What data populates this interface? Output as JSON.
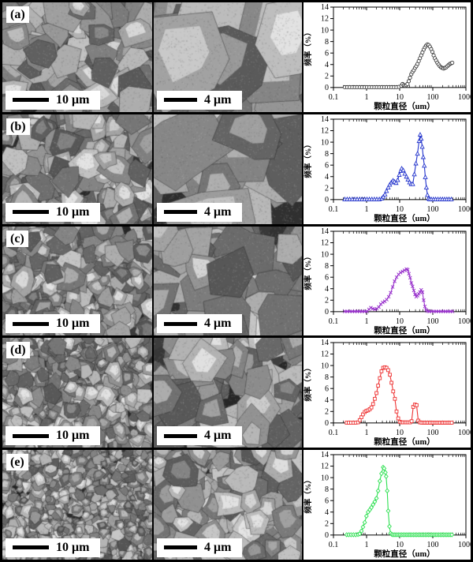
{
  "figure": {
    "rows": [
      {
        "label": "(a)",
        "left_scalebar": "10 μm",
        "mid_scalebar": "4 μm"
      },
      {
        "label": "(b)",
        "left_scalebar": "10 μm",
        "mid_scalebar": "4 μm"
      },
      {
        "label": "(c)",
        "left_scalebar": "10 μm",
        "mid_scalebar": "4 μm"
      },
      {
        "label": "(d)",
        "left_scalebar": "10 μm",
        "mid_scalebar": "4 μm"
      },
      {
        "label": "(e)",
        "left_scalebar": "10 μm",
        "mid_scalebar": "4 μm"
      }
    ]
  },
  "chart_common": {
    "xlabel": "颗粒直径（um）",
    "ylabel": "频率（%）",
    "xscale": "log",
    "xlim": [
      0.1,
      1000
    ],
    "ylim": [
      0,
      14
    ],
    "xticks": [
      "0.1",
      "1",
      "10",
      "100",
      "1000"
    ],
    "yticks": [
      0,
      2,
      4,
      6,
      8,
      10,
      12,
      14
    ],
    "grid": false,
    "legend": "none"
  },
  "chart_data": [
    {
      "type": "line",
      "panel": "a",
      "color": "#3a3a3a",
      "marker": "circle",
      "title": "",
      "xlabel": "颗粒直径（um）",
      "ylabel": "频率（%）",
      "xscale": "log",
      "xlim": [
        0.1,
        1000
      ],
      "ylim": [
        0,
        14
      ],
      "points": [
        [
          0.22,
          0.05
        ],
        [
          0.26,
          0.05
        ],
        [
          0.31,
          0.05
        ],
        [
          0.37,
          0.05
        ],
        [
          0.44,
          0.05
        ],
        [
          0.52,
          0.05
        ],
        [
          0.62,
          0.05
        ],
        [
          0.73,
          0.05
        ],
        [
          0.87,
          0.05
        ],
        [
          1.03,
          0.05
        ],
        [
          1.22,
          0.05
        ],
        [
          1.45,
          0.05
        ],
        [
          1.72,
          0.05
        ],
        [
          2.04,
          0.05
        ],
        [
          2.42,
          0.05
        ],
        [
          2.87,
          0.05
        ],
        [
          3.4,
          0.05
        ],
        [
          4.03,
          0.05
        ],
        [
          4.78,
          0.05
        ],
        [
          5.67,
          0.05
        ],
        [
          6.72,
          0.05
        ],
        [
          7.97,
          0.05
        ],
        [
          9.45,
          0.1
        ],
        [
          11.2,
          0.3
        ],
        [
          12.2,
          0.6
        ],
        [
          13.3,
          0.4
        ],
        [
          14.5,
          0.3
        ],
        [
          15.8,
          0.4
        ],
        [
          17.2,
          0.6
        ],
        [
          18.8,
          1.1
        ],
        [
          20.5,
          1.7
        ],
        [
          22.4,
          2.3
        ],
        [
          24.4,
          2.7
        ],
        [
          26.6,
          3.0
        ],
        [
          29,
          3.4
        ],
        [
          31.6,
          3.7
        ],
        [
          34.5,
          4.1
        ],
        [
          37.6,
          4.6
        ],
        [
          41,
          5.1
        ],
        [
          44.7,
          5.6
        ],
        [
          48.7,
          6.1
        ],
        [
          53.1,
          6.6
        ],
        [
          57.9,
          7.0
        ],
        [
          63.1,
          7.3
        ],
        [
          68.8,
          7.5
        ],
        [
          75,
          7.4
        ],
        [
          81.8,
          7.1
        ],
        [
          89.2,
          6.7
        ],
        [
          97.2,
          6.2
        ],
        [
          106,
          5.6
        ],
        [
          115.5,
          5.1
        ],
        [
          126,
          4.7
        ],
        [
          137.4,
          4.3
        ],
        [
          149.8,
          4.0
        ],
        [
          163.3,
          3.7
        ],
        [
          178,
          3.5
        ],
        [
          194,
          3.4
        ],
        [
          211.6,
          3.3
        ],
        [
          230.7,
          3.4
        ],
        [
          251.5,
          3.5
        ],
        [
          274.2,
          3.7
        ],
        [
          299,
          3.9
        ],
        [
          325.9,
          4.1
        ],
        [
          355.3,
          4.2
        ],
        [
          387.4,
          4.3
        ]
      ]
    },
    {
      "type": "line",
      "panel": "b",
      "color": "#2233cc",
      "marker": "triangle",
      "title": "",
      "xlabel": "颗粒直径（um）",
      "ylabel": "频率（%）",
      "xscale": "log",
      "xlim": [
        0.1,
        1000
      ],
      "ylim": [
        0,
        14
      ],
      "points": [
        [
          0.22,
          0.05
        ],
        [
          0.26,
          0.05
        ],
        [
          0.31,
          0.05
        ],
        [
          0.37,
          0.05
        ],
        [
          0.44,
          0.05
        ],
        [
          0.52,
          0.05
        ],
        [
          0.62,
          0.05
        ],
        [
          0.73,
          0.05
        ],
        [
          0.87,
          0.05
        ],
        [
          1.03,
          0.05
        ],
        [
          1.22,
          0.05
        ],
        [
          1.45,
          0.05
        ],
        [
          1.72,
          0.05
        ],
        [
          2.04,
          0.05
        ],
        [
          2.42,
          0.05
        ],
        [
          2.87,
          0.2
        ],
        [
          3.2,
          0.5
        ],
        [
          3.6,
          0.9
        ],
        [
          4.0,
          1.5
        ],
        [
          4.5,
          2.1
        ],
        [
          5.0,
          2.6
        ],
        [
          5.6,
          3.0
        ],
        [
          6.3,
          3.3
        ],
        [
          7.0,
          3.1
        ],
        [
          7.8,
          2.9
        ],
        [
          8.7,
          3.4
        ],
        [
          9.7,
          4.3
        ],
        [
          10.8,
          5.0
        ],
        [
          11.5,
          5.4
        ],
        [
          12.8,
          5.1
        ],
        [
          14.3,
          4.5
        ],
        [
          16.0,
          4.0
        ],
        [
          17.8,
          3.5
        ],
        [
          19.9,
          3.0
        ],
        [
          22.2,
          2.7
        ],
        [
          24.8,
          2.7
        ],
        [
          27.7,
          4.4
        ],
        [
          30.9,
          6.3
        ],
        [
          34.5,
          8.0
        ],
        [
          38.5,
          10.2
        ],
        [
          41.5,
          11.3
        ],
        [
          44.5,
          10.6
        ],
        [
          48,
          9.2
        ],
        [
          51.5,
          7.4
        ],
        [
          55.5,
          5.9
        ],
        [
          59.5,
          3.9
        ],
        [
          64,
          2.1
        ],
        [
          69,
          0.8
        ],
        [
          74,
          0.2
        ],
        [
          80,
          0.05
        ],
        [
          90,
          0.05
        ],
        [
          105,
          0.05
        ],
        [
          122,
          0.05
        ],
        [
          143,
          0.05
        ],
        [
          167,
          0.05
        ],
        [
          195,
          0.05
        ],
        [
          228,
          0.05
        ],
        [
          266,
          0.05
        ],
        [
          311,
          0.05
        ],
        [
          363,
          0.05
        ]
      ]
    },
    {
      "type": "line",
      "panel": "c",
      "color": "#9933cc",
      "marker": "x",
      "title": "",
      "xlabel": "颗粒直径（um）",
      "ylabel": "频率（%）",
      "xscale": "log",
      "xlim": [
        0.1,
        1000
      ],
      "ylim": [
        0,
        14
      ],
      "points": [
        [
          0.22,
          0.05
        ],
        [
          0.26,
          0.05
        ],
        [
          0.31,
          0.05
        ],
        [
          0.37,
          0.05
        ],
        [
          0.44,
          0.05
        ],
        [
          0.52,
          0.05
        ],
        [
          0.62,
          0.05
        ],
        [
          0.73,
          0.05
        ],
        [
          0.87,
          0.05
        ],
        [
          1.03,
          0.05
        ],
        [
          1.18,
          0.4
        ],
        [
          1.35,
          0.7
        ],
        [
          1.55,
          0.5
        ],
        [
          1.78,
          0.4
        ],
        [
          2.04,
          0.5
        ],
        [
          2.34,
          0.8
        ],
        [
          2.69,
          1.3
        ],
        [
          3.08,
          1.6
        ],
        [
          3.54,
          1.8
        ],
        [
          4.06,
          2.1
        ],
        [
          4.66,
          2.6
        ],
        [
          5.34,
          3.3
        ],
        [
          6.13,
          4.3
        ],
        [
          7.03,
          5.3
        ],
        [
          8.07,
          6.0
        ],
        [
          9.26,
          6.5
        ],
        [
          10.6,
          6.8
        ],
        [
          12.2,
          7.0
        ],
        [
          14.0,
          7.2
        ],
        [
          16.0,
          7.4
        ],
        [
          17.5,
          7.3
        ],
        [
          19,
          6.6
        ],
        [
          20.7,
          5.9
        ],
        [
          22.5,
          5.0
        ],
        [
          24.5,
          4.4
        ],
        [
          26.7,
          3.7
        ],
        [
          29.1,
          3.0
        ],
        [
          31.7,
          2.6
        ],
        [
          34.5,
          2.8
        ],
        [
          37.6,
          3.1
        ],
        [
          41,
          3.4
        ],
        [
          44.6,
          3.8
        ],
        [
          48.6,
          3.4
        ],
        [
          53,
          2.0
        ],
        [
          57.7,
          0.9
        ],
        [
          62.9,
          0.3
        ],
        [
          68.5,
          0.1
        ],
        [
          78,
          0.05
        ],
        [
          92,
          0.05
        ],
        [
          108,
          0.05
        ],
        [
          127,
          0.05
        ],
        [
          150,
          0.05
        ],
        [
          176,
          0.05
        ],
        [
          207,
          0.05
        ],
        [
          243,
          0.05
        ],
        [
          286,
          0.05
        ],
        [
          336,
          0.05
        ],
        [
          395,
          0.05
        ]
      ]
    },
    {
      "type": "line",
      "panel": "d",
      "color": "#ee3333",
      "marker": "square",
      "title": "",
      "xlabel": "颗粒直径（um）",
      "ylabel": "频率（%）",
      "xscale": "log",
      "xlim": [
        0.1,
        1000
      ],
      "ylim": [
        0,
        14
      ],
      "points": [
        [
          0.25,
          0.05
        ],
        [
          0.29,
          0.05
        ],
        [
          0.34,
          0.05
        ],
        [
          0.4,
          0.05
        ],
        [
          0.47,
          0.05
        ],
        [
          0.55,
          0.1
        ],
        [
          0.62,
          0.5
        ],
        [
          0.7,
          1.0
        ],
        [
          0.78,
          1.5
        ],
        [
          0.88,
          1.9
        ],
        [
          0.99,
          2.1
        ],
        [
          1.11,
          2.2
        ],
        [
          1.25,
          2.4
        ],
        [
          1.4,
          2.7
        ],
        [
          1.57,
          3.3
        ],
        [
          1.77,
          4.2
        ],
        [
          1.99,
          5.2
        ],
        [
          2.23,
          6.5
        ],
        [
          2.51,
          7.8
        ],
        [
          2.82,
          9.0
        ],
        [
          3.17,
          9.6
        ],
        [
          3.56,
          9.7
        ],
        [
          4.0,
          9.6
        ],
        [
          4.49,
          9.2
        ],
        [
          5.05,
          8.4
        ],
        [
          5.67,
          7.0
        ],
        [
          6.37,
          5.5
        ],
        [
          7.16,
          4.2
        ],
        [
          8.04,
          2.0
        ],
        [
          9.03,
          0.8
        ],
        [
          10.1,
          0.2
        ],
        [
          11.4,
          0.1
        ],
        [
          12.8,
          0.1
        ],
        [
          14.4,
          0.1
        ],
        [
          16.1,
          0.1
        ],
        [
          18.1,
          0.1
        ],
        [
          20.4,
          0.1
        ],
        [
          22.9,
          0.3
        ],
        [
          25.7,
          2.8
        ],
        [
          28.8,
          3.2
        ],
        [
          32.4,
          3.1
        ],
        [
          36.4,
          0.4
        ],
        [
          40.9,
          0.1
        ],
        [
          45.9,
          0.05
        ],
        [
          52,
          0.05
        ],
        [
          58,
          0.05
        ],
        [
          65,
          0.05
        ],
        [
          73,
          0.05
        ],
        [
          82,
          0.05
        ],
        [
          92,
          0.05
        ],
        [
          104,
          0.05
        ],
        [
          117,
          0.05
        ],
        [
          131,
          0.05
        ],
        [
          147,
          0.05
        ],
        [
          165,
          0.05
        ],
        [
          186,
          0.05
        ],
        [
          209,
          0.05
        ],
        [
          234,
          0.05
        ],
        [
          263,
          0.05
        ],
        [
          296,
          0.05
        ],
        [
          332,
          0.05
        ],
        [
          373,
          0.05
        ]
      ]
    },
    {
      "type": "line",
      "panel": "e",
      "color": "#2ee052",
      "marker": "diamond",
      "title": "",
      "xlabel": "颗粒直径（um）",
      "ylabel": "频率（%）",
      "xscale": "log",
      "xlim": [
        0.1,
        1000
      ],
      "ylim": [
        0,
        14
      ],
      "points": [
        [
          0.25,
          0.05
        ],
        [
          0.29,
          0.05
        ],
        [
          0.34,
          0.05
        ],
        [
          0.4,
          0.05
        ],
        [
          0.47,
          0.05
        ],
        [
          0.55,
          0.1
        ],
        [
          0.62,
          0.2
        ],
        [
          0.7,
          0.7
        ],
        [
          0.78,
          1.4
        ],
        [
          0.88,
          2.2
        ],
        [
          0.99,
          3.3
        ],
        [
          1.11,
          4.0
        ],
        [
          1.25,
          4.4
        ],
        [
          1.4,
          4.8
        ],
        [
          1.57,
          5.3
        ],
        [
          1.77,
          5.8
        ],
        [
          1.99,
          6.4
        ],
        [
          2.23,
          7.7
        ],
        [
          2.51,
          9.4
        ],
        [
          2.82,
          10.7
        ],
        [
          3.16,
          11.8
        ],
        [
          3.4,
          11.6
        ],
        [
          3.7,
          10.9
        ],
        [
          3.9,
          10.2
        ],
        [
          4.2,
          7.7
        ],
        [
          4.5,
          4.2
        ],
        [
          4.9,
          1.5
        ],
        [
          5.3,
          0.3
        ],
        [
          5.8,
          0.1
        ],
        [
          6.4,
          0.05
        ],
        [
          7.2,
          0.05
        ],
        [
          8.1,
          0.05
        ],
        [
          9.1,
          0.05
        ],
        [
          10.2,
          0.05
        ],
        [
          11.5,
          0.05
        ],
        [
          12.9,
          0.05
        ],
        [
          14.5,
          0.05
        ],
        [
          16.3,
          0.05
        ],
        [
          18.3,
          0.05
        ],
        [
          20.6,
          0.05
        ],
        [
          23.1,
          0.05
        ],
        [
          26,
          0.05
        ],
        [
          29.2,
          0.05
        ],
        [
          32.8,
          0.05
        ],
        [
          36.8,
          0.05
        ],
        [
          41.4,
          0.05
        ],
        [
          46.5,
          0.05
        ],
        [
          52.2,
          0.05
        ],
        [
          58.7,
          0.05
        ],
        [
          65.9,
          0.05
        ],
        [
          74,
          0.05
        ],
        [
          83.2,
          0.05
        ],
        [
          93.4,
          0.05
        ],
        [
          105,
          0.05
        ],
        [
          118,
          0.05
        ],
        [
          132,
          0.05
        ],
        [
          149,
          0.05
        ],
        [
          167,
          0.05
        ],
        [
          188,
          0.05
        ],
        [
          211,
          0.05
        ],
        [
          237,
          0.05
        ],
        [
          266,
          0.05
        ],
        [
          299,
          0.05
        ],
        [
          336,
          0.05
        ],
        [
          377,
          0.05
        ]
      ]
    }
  ]
}
